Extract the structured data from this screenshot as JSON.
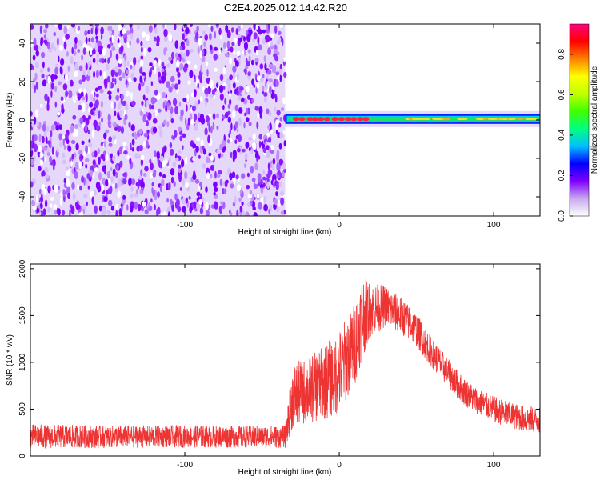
{
  "chart_data": [
    {
      "type": "heatmap",
      "title": "C2E4.2025.012.14.42.R20",
      "xlabel": "Height of straight line (km)",
      "ylabel": "Frequency (Hz)",
      "xlim": [
        -200,
        130
      ],
      "ylim": [
        -50,
        50
      ],
      "xticks": [
        -100,
        0,
        100
      ],
      "yticks": [
        -40,
        -20,
        0,
        20,
        40
      ],
      "noise_region_x": [
        -200,
        -35
      ],
      "signal": {
        "x_start": -35,
        "x_end": 130,
        "center_frequency_hz": 0.5,
        "normalized_amplitude_peak": 0.9
      },
      "colorbar": {
        "label": "Normalized spectral amplitude",
        "range": [
          0,
          0.95
        ],
        "ticks": [
          "0.0",
          "0.2",
          "0.4",
          "0.6",
          "0.8"
        ],
        "colors": [
          "#ffffff",
          "#c8a8f0",
          "#8000ff",
          "#0000ff",
          "#00c0ff",
          "#00ff80",
          "#40ff00",
          "#c0ff00",
          "#ffff00",
          "#ff8000",
          "#ff0000",
          "#ff0080"
        ]
      },
      "grid": false
    },
    {
      "type": "line",
      "title": "",
      "xlabel": "Height of straight line (km)",
      "ylabel": "SNR (10 * v/v)",
      "xlim": [
        -200,
        130
      ],
      "ylim": [
        0,
        2050
      ],
      "xticks": [
        -100,
        0,
        100
      ],
      "yticks": [
        0,
        500,
        1000,
        1500,
        2000
      ],
      "color": "#ee3333",
      "envelope": {
        "x": [
          -200,
          -150,
          -100,
          -60,
          -35,
          -30,
          -20,
          -10,
          0,
          10,
          15,
          20,
          30,
          40,
          50,
          60,
          70,
          80,
          90,
          100,
          110,
          120,
          130
        ],
        "mean": [
          210,
          205,
          210,
          205,
          205,
          650,
          700,
          780,
          900,
          1200,
          1500,
          1560,
          1600,
          1500,
          1350,
          1100,
          900,
          700,
          580,
          500,
          440,
          400,
          380
        ],
        "spread": [
          130,
          120,
          120,
          120,
          120,
          350,
          350,
          400,
          450,
          450,
          450,
          300,
          220,
          200,
          180,
          160,
          160,
          150,
          140,
          140,
          140,
          140,
          140
        ]
      },
      "grid": false
    }
  ]
}
